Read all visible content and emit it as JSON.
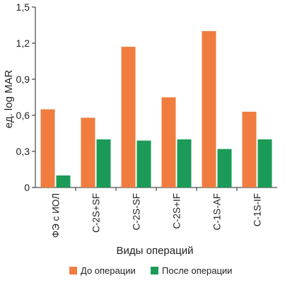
{
  "chart_data": {
    "type": "bar",
    "title": "",
    "xlabel": "Виды операций",
    "ylabel": "ед. log MAR",
    "ylim": [
      0,
      1.5
    ],
    "yticks": [
      "0",
      "0,3",
      "0,6",
      "0,9",
      "1,2",
      "1,5"
    ],
    "ytick_values": [
      0,
      0.3,
      0.6,
      0.9,
      1.2,
      1.5
    ],
    "grid": false,
    "legend_position": "bottom",
    "categories": [
      "ФЭ с ИОЛ",
      "C-2S+SF",
      "C-2S-SF",
      "C-2S+IF",
      "C-1S-AF",
      "C-1S-IF"
    ],
    "series": [
      {
        "name": "До операции",
        "color": "#f07d3f",
        "values": [
          0.65,
          0.58,
          1.17,
          0.75,
          1.3,
          0.63
        ]
      },
      {
        "name": "После операции",
        "color": "#1b9b57",
        "values": [
          0.1,
          0.4,
          0.39,
          0.4,
          0.32,
          0.4
        ]
      }
    ]
  }
}
